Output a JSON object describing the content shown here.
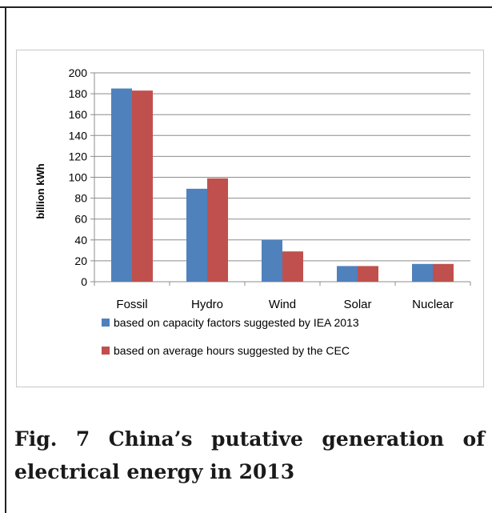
{
  "caption": "Fig. 7 China’s putative generation of electrical energy in 2013",
  "chart_data": {
    "type": "bar",
    "categories": [
      "Fossil",
      "Hydro",
      "Wind",
      "Solar",
      "Nuclear"
    ],
    "series": [
      {
        "name": "based on capacity factors suggested by IEA 2013",
        "color": "#4f81bd",
        "values": [
          185,
          89,
          40,
          15,
          17
        ]
      },
      {
        "name": "based on average hours suggested by the CEC",
        "color": "#c0504d",
        "values": [
          183,
          99,
          29,
          15,
          17
        ]
      }
    ],
    "title": "",
    "xlabel": "",
    "ylabel": "billion kWh",
    "ylim": [
      0,
      200
    ],
    "yticks": [
      0,
      20,
      40,
      60,
      80,
      100,
      120,
      140,
      160,
      180,
      200
    ],
    "grid": true,
    "legend_position": "bottom"
  }
}
